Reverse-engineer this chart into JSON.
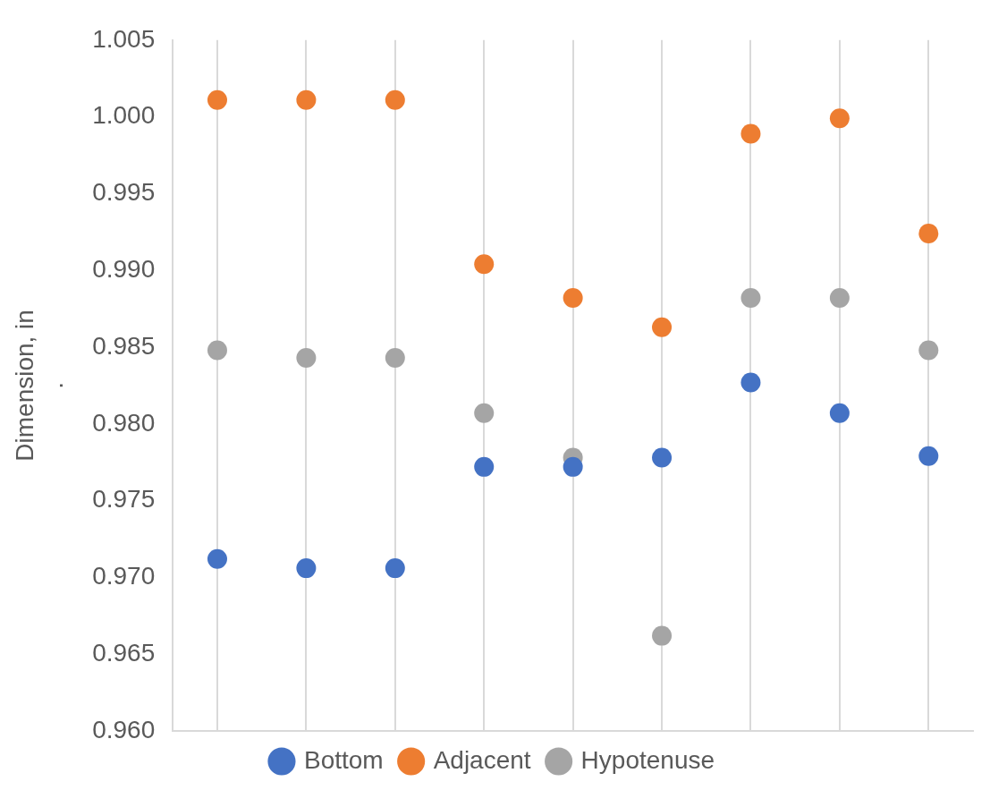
{
  "chart_data": {
    "type": "scatter",
    "ylabel": "Dimension, in\n.",
    "categories": [
      null,
      null,
      null,
      null,
      null,
      null,
      null,
      null,
      null
    ],
    "series": [
      {
        "name": "Bottom",
        "color": "#4472c4",
        "values": [
          0.9712,
          0.9706,
          0.9706,
          0.9772,
          0.9772,
          0.9778,
          0.9827,
          0.9807,
          0.9779
        ]
      },
      {
        "name": "Adjacent",
        "color": "#ed7d31",
        "values": [
          1.0011,
          1.0011,
          1.0011,
          0.9904,
          0.9882,
          0.9863,
          0.9989,
          0.9999,
          0.9924
        ]
      },
      {
        "name": "Hypotenuse",
        "color": "#a5a5a5",
        "values": [
          0.9848,
          0.9843,
          0.9843,
          0.9807,
          0.9778,
          0.9662,
          0.9882,
          0.9882,
          0.9848
        ]
      }
    ],
    "ylim": [
      0.96,
      1.005
    ],
    "yticks": [
      {
        "value": 0.96,
        "label": "0.960"
      },
      {
        "value": 0.965,
        "label": "0.965"
      },
      {
        "value": 0.97,
        "label": "0.970"
      },
      {
        "value": 0.975,
        "label": "0.975"
      },
      {
        "value": 0.98,
        "label": "0.980"
      },
      {
        "value": 0.985,
        "label": "0.985"
      },
      {
        "value": 0.99,
        "label": "0.990"
      },
      {
        "value": 0.995,
        "label": "0.995"
      },
      {
        "value": 1.0,
        "label": "1.000"
      },
      {
        "value": 1.005,
        "label": "1.005"
      }
    ],
    "grid": "x",
    "legend": "bottom",
    "marker": "circle",
    "tick_labels": "y"
  }
}
